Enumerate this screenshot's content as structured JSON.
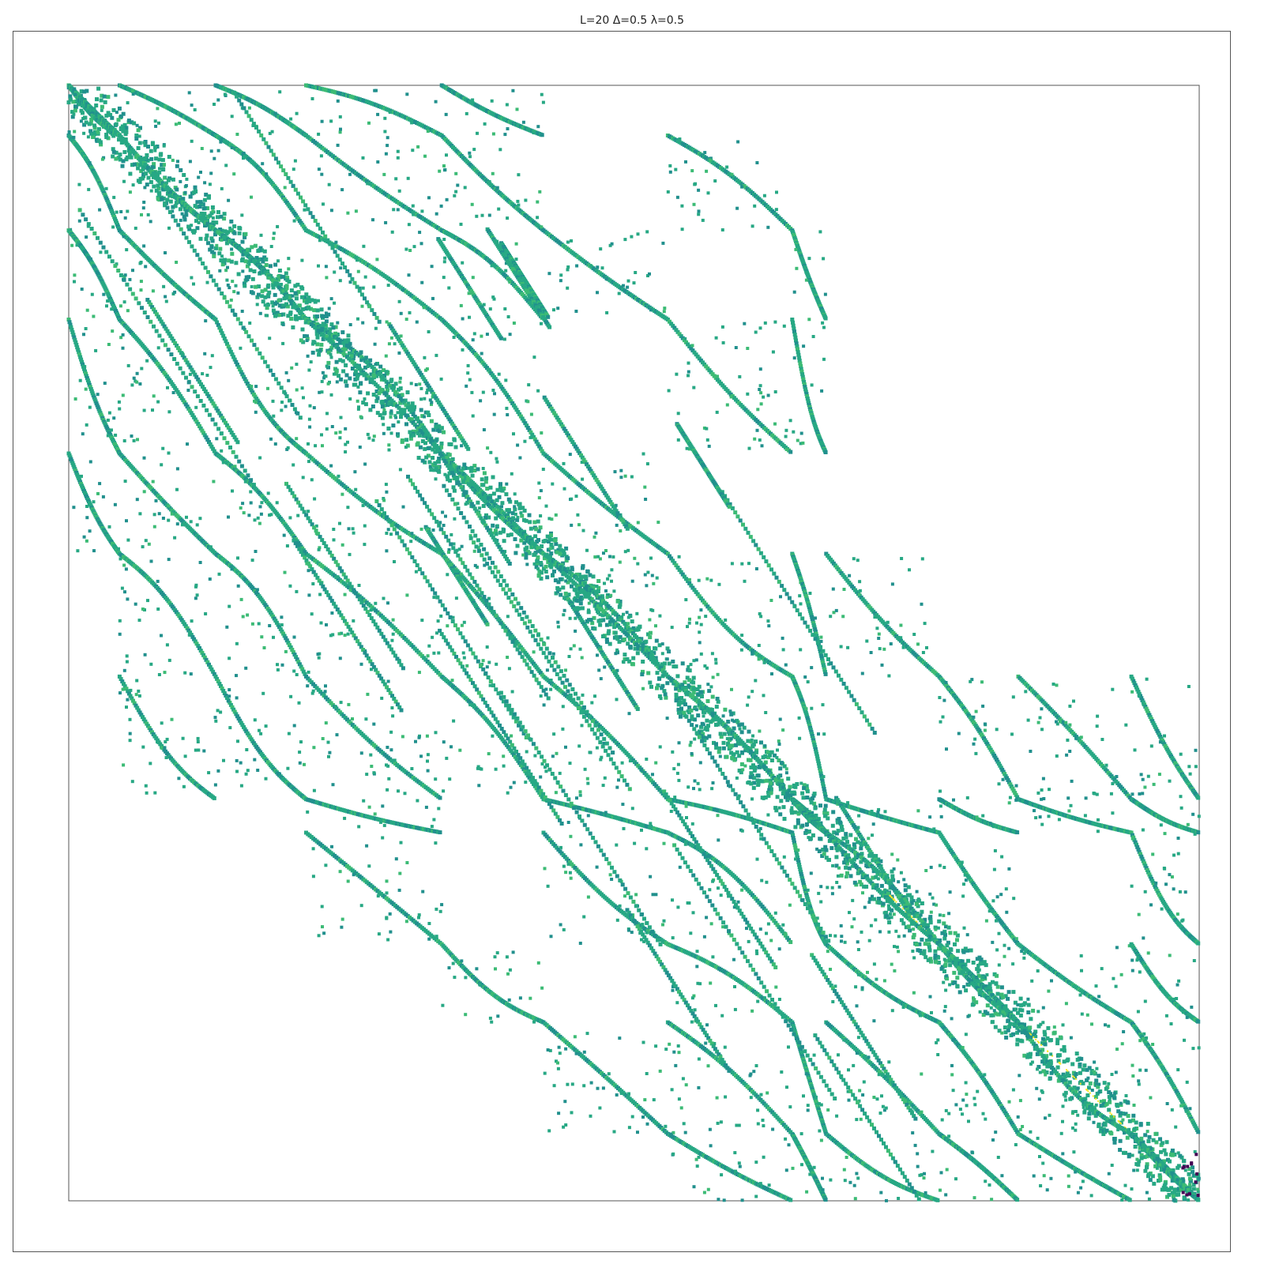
{
  "chart_data": {
    "type": "heatmap",
    "title": "L=20 Δ=0.5 λ=0.5",
    "xlabel": "",
    "ylabel": "",
    "xlim": [
      0,
      1
    ],
    "ylim": [
      0,
      1
    ],
    "colormap": "viridis",
    "colors": {
      "dominant": "#27a884",
      "dark": "#21908d",
      "light": "#3cbb75",
      "bright": "#fde725",
      "low": "#440154"
    },
    "grid": false,
    "legend": "none"
  }
}
